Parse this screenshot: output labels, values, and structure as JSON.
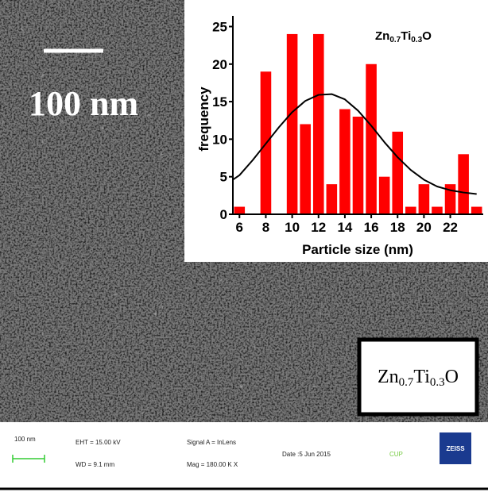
{
  "scale_bar_label": "100 nm",
  "sample_label": [
    "Zn",
    "0.7",
    "Ti",
    "0.3",
    "O"
  ],
  "footer": {
    "scale": "100 nm",
    "eht": "EHT = 15.00 kV",
    "wd": "WD = 9.1 mm",
    "signal": "Signal A = InLens",
    "mag": "Mag = 180.00 K X",
    "date": "Date :5 Jun 2015",
    "org": "CUP",
    "logo": "ZEISS"
  },
  "chart_data": {
    "type": "histogram",
    "title": [
      "Zn",
      "0.7",
      "Ti",
      "0.3",
      "O"
    ],
    "xlabel": "Particle size (nm)",
    "ylabel": "frequency",
    "bins": [
      5.5,
      6.5,
      7.5,
      8.5,
      9.5,
      10.5,
      11.5,
      12.5,
      13.5,
      14.5,
      15.5,
      16.5,
      17.5,
      18.5,
      19.5,
      20.5,
      21.5,
      22.5,
      23.5,
      24.5
    ],
    "values": [
      1,
      0,
      19,
      0,
      24,
      12,
      24,
      4,
      14,
      13,
      20,
      5,
      11,
      1,
      4,
      1,
      4,
      8,
      1
    ],
    "color": "#ff0000",
    "fit": {
      "x": [
        5.5,
        6,
        7,
        8,
        9,
        10,
        11,
        12,
        13,
        14,
        15,
        16,
        17,
        18,
        19,
        20,
        21,
        22,
        23,
        24
      ],
      "values": [
        4.6,
        5.2,
        7.2,
        9.4,
        11.6,
        13.6,
        15.1,
        15.9,
        16,
        15.3,
        13.8,
        11.8,
        9.6,
        7.6,
        5.9,
        4.6,
        3.7,
        3.2,
        2.9,
        2.7
      ],
      "color": "#000000"
    },
    "xlim": [
      5.5,
      24.5
    ],
    "ylim": [
      0,
      26
    ],
    "xticks": [
      6,
      8,
      10,
      12,
      14,
      16,
      18,
      20,
      22
    ],
    "yticks": [
      0,
      5,
      10,
      15,
      20,
      25
    ]
  }
}
